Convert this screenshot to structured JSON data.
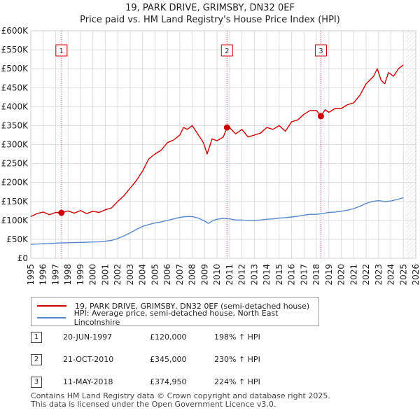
{
  "chart_data": {
    "type": "line",
    "title": "19, PARK DRIVE, GRIMSBY, DN32 0EF",
    "subtitle": "Price paid vs. HM Land Registry's House Price Index (HPI)",
    "xlim": [
      1995,
      2026
    ],
    "ylim": [
      0,
      600000
    ],
    "y_ticks": [
      0,
      50000,
      100000,
      150000,
      200000,
      250000,
      300000,
      350000,
      400000,
      450000,
      500000,
      550000,
      600000
    ],
    "y_tick_labels": [
      "£0",
      "£50K",
      "£100K",
      "£150K",
      "£200K",
      "£250K",
      "£300K",
      "£350K",
      "£400K",
      "£450K",
      "£500K",
      "£550K",
      "£600K"
    ],
    "x_ticks": [
      1995,
      1996,
      1997,
      1998,
      1999,
      2000,
      2001,
      2002,
      2003,
      2004,
      2005,
      2006,
      2007,
      2008,
      2009,
      2010,
      2011,
      2012,
      2013,
      2014,
      2015,
      2016,
      2017,
      2018,
      2019,
      2020,
      2021,
      2022,
      2023,
      2024,
      2025,
      2026
    ],
    "x_tick_labels": [
      "1995",
      "1996",
      "1997",
      "1998",
      "1999",
      "2000",
      "2001",
      "2002",
      "2003",
      "2004",
      "2005",
      "2006",
      "2007",
      "2008",
      "2009",
      "2010",
      "2011",
      "2012",
      "2013",
      "2014",
      "2015",
      "2016",
      "2017",
      "2018",
      "2019",
      "2020",
      "2021",
      "2022",
      "2023",
      "2024",
      "2025",
      "2026"
    ],
    "grid": true,
    "data_end_x": 2025.2,
    "series": [
      {
        "name": "19, PARK DRIVE, GRIMSBY, DN32 0EF (semi-detached house)",
        "color": "#cc0000",
        "x": [
          1995.0,
          1995.5,
          1996.0,
          1996.5,
          1997.0,
          1997.47,
          1998.0,
          1998.5,
          1999.0,
          1999.5,
          2000.0,
          2000.5,
          2001.0,
          2001.5,
          2002.0,
          2002.5,
          2003.0,
          2003.5,
          2004.0,
          2004.5,
          2005.0,
          2005.5,
          2006.0,
          2006.5,
          2007.0,
          2007.3,
          2007.6,
          2008.0,
          2008.5,
          2008.9,
          2009.2,
          2009.6,
          2010.0,
          2010.5,
          2010.8,
          2011.0,
          2011.5,
          2012.0,
          2012.5,
          2013.0,
          2013.5,
          2014.0,
          2014.5,
          2015.0,
          2015.5,
          2016.0,
          2016.5,
          2017.0,
          2017.5,
          2018.0,
          2018.36,
          2018.7,
          2019.0,
          2019.5,
          2020.0,
          2020.5,
          2021.0,
          2021.5,
          2022.0,
          2022.3,
          2022.6,
          2022.9,
          2023.2,
          2023.5,
          2023.8,
          2024.2,
          2024.6,
          2025.0
        ],
        "values": [
          110000,
          118000,
          122000,
          115000,
          121000,
          120000,
          125000,
          119000,
          126000,
          118000,
          124000,
          121000,
          128000,
          133000,
          150000,
          165000,
          185000,
          205000,
          230000,
          262000,
          275000,
          285000,
          305000,
          312000,
          325000,
          345000,
          340000,
          350000,
          325000,
          305000,
          275000,
          315000,
          310000,
          320000,
          345000,
          345000,
          328000,
          340000,
          320000,
          325000,
          330000,
          345000,
          340000,
          350000,
          335000,
          360000,
          365000,
          380000,
          390000,
          390000,
          374950,
          392000,
          385000,
          395000,
          395000,
          405000,
          410000,
          430000,
          460000,
          470000,
          480000,
          500000,
          470000,
          460000,
          490000,
          480000,
          500000,
          510000
        ]
      },
      {
        "name": "HPI: Average price, semi-detached house, North East Lincolnshire",
        "color": "#5588cc",
        "x": [
          1995.0,
          1995.5,
          1996.0,
          1996.5,
          1997.0,
          1997.5,
          1998.0,
          1998.5,
          1999.0,
          1999.5,
          2000.0,
          2000.5,
          2001.0,
          2001.5,
          2002.0,
          2002.5,
          2003.0,
          2003.5,
          2004.0,
          2004.5,
          2005.0,
          2005.5,
          2006.0,
          2006.5,
          2007.0,
          2007.5,
          2008.0,
          2008.5,
          2009.0,
          2009.3,
          2009.7,
          2010.0,
          2010.5,
          2011.0,
          2011.5,
          2012.0,
          2012.5,
          2013.0,
          2013.5,
          2014.0,
          2014.5,
          2015.0,
          2015.5,
          2016.0,
          2016.5,
          2017.0,
          2017.5,
          2018.0,
          2018.5,
          2019.0,
          2019.5,
          2020.0,
          2020.5,
          2021.0,
          2021.5,
          2022.0,
          2022.5,
          2023.0,
          2023.5,
          2024.0,
          2024.5,
          2025.0
        ],
        "values": [
          37000,
          37500,
          38500,
          39000,
          40000,
          40500,
          41000,
          41500,
          42000,
          42500,
          43000,
          43500,
          45000,
          47000,
          52000,
          59000,
          67000,
          76000,
          84000,
          89000,
          93000,
          96000,
          100000,
          104000,
          108000,
          110000,
          110000,
          106000,
          98000,
          92000,
          100000,
          103000,
          105000,
          104000,
          101000,
          101000,
          100000,
          100000,
          101000,
          103000,
          104000,
          106000,
          107000,
          109000,
          111000,
          114000,
          116000,
          116000,
          118000,
          121000,
          122000,
          124000,
          127000,
          131000,
          137000,
          145000,
          150000,
          152000,
          150000,
          151000,
          155000,
          160000
        ]
      }
    ],
    "sale_points": [
      {
        "label": "1",
        "x": 1997.47,
        "y": 120000
      },
      {
        "label": "2",
        "x": 2010.8,
        "y": 345000
      },
      {
        "label": "3",
        "x": 2018.36,
        "y": 374950
      }
    ]
  },
  "legend": {
    "property_label": "19, PARK DRIVE, GRIMSBY, DN32 0EF (semi-detached house)",
    "hpi_label": "HPI: Average price, semi-detached house, North East Lincolnshire"
  },
  "sales": [
    {
      "num": "1",
      "date": "20-JUN-1997",
      "price": "£120,000",
      "hpi": "198% ↑ HPI"
    },
    {
      "num": "2",
      "date": "21-OCT-2010",
      "price": "£345,000",
      "hpi": "230% ↑ HPI"
    },
    {
      "num": "3",
      "date": "11-MAY-2018",
      "price": "£374,950",
      "hpi": "224% ↑ HPI"
    }
  ],
  "footer": {
    "line1": "Contains HM Land Registry data © Crown copyright and database right 2025.",
    "line2": "This data is licensed under the Open Government Licence v3.0."
  }
}
